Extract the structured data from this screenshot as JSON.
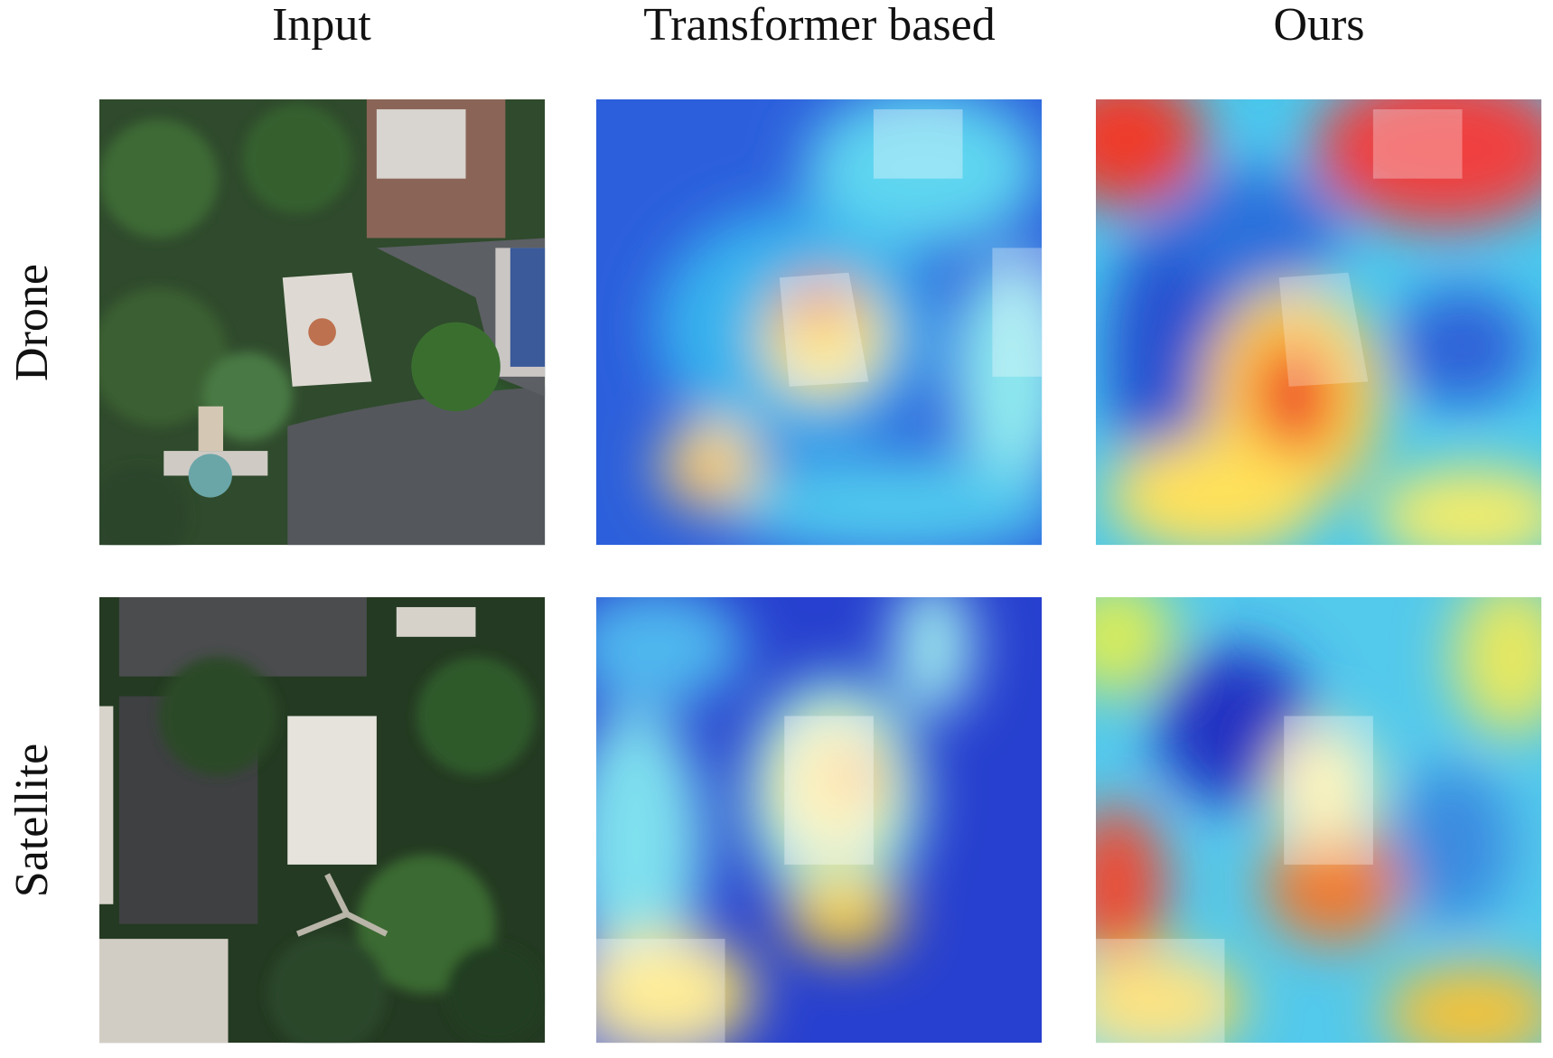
{
  "columns": [
    "Input",
    "Transformer based",
    "Ours"
  ],
  "rows": [
    "Drone",
    "Satellite"
  ]
}
